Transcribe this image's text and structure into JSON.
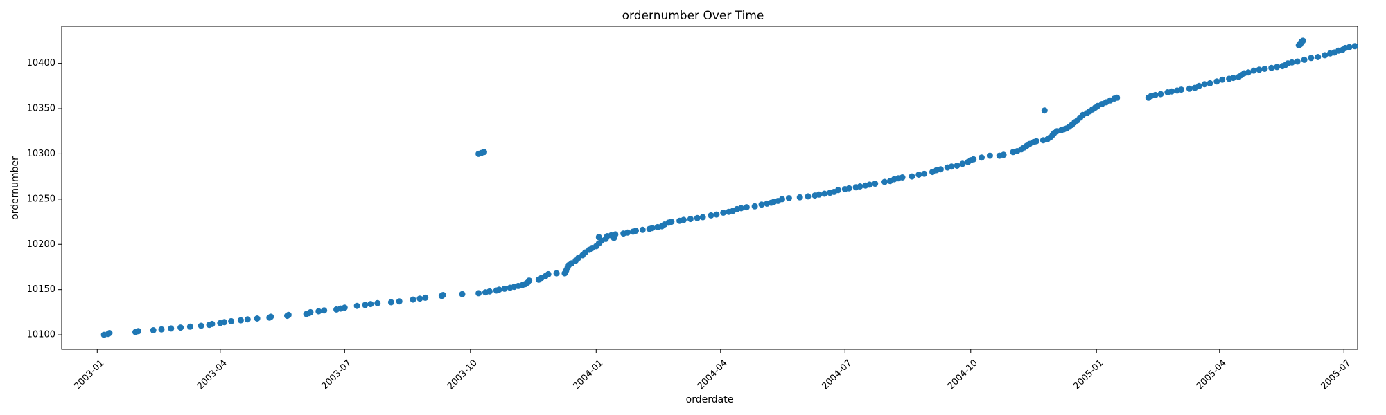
{
  "chart_data": {
    "type": "scatter",
    "title": "ordernumber Over Time",
    "xlabel": "orderdate",
    "ylabel": "ordernumber",
    "x_axis_type": "date",
    "xlim": [
      "2002-12-06",
      "2005-07-11"
    ],
    "ylim": [
      10084,
      10441
    ],
    "x_ticks": [
      "2003-01",
      "2003-04",
      "2003-07",
      "2003-10",
      "2004-01",
      "2004-04",
      "2004-07",
      "2004-10",
      "2005-01",
      "2005-04",
      "2005-07"
    ],
    "y_ticks": [
      10100,
      10150,
      10200,
      10250,
      10300,
      10350,
      10400
    ],
    "grid": false,
    "legend": "none",
    "color": "#1f77b4",
    "series": [
      {
        "points": [
          [
            "2003-01-06",
            10100
          ],
          [
            "2003-01-09",
            10101
          ],
          [
            "2003-01-10",
            10102
          ],
          [
            "2003-01-29",
            10103
          ],
          [
            "2003-01-31",
            10104
          ],
          [
            "2003-02-11",
            10105
          ],
          [
            "2003-02-17",
            10106
          ],
          [
            "2003-02-24",
            10107
          ],
          [
            "2003-03-03",
            10108
          ],
          [
            "2003-03-10",
            10109
          ],
          [
            "2003-03-18",
            10110
          ],
          [
            "2003-03-24",
            10111
          ],
          [
            "2003-03-26",
            10112
          ],
          [
            "2003-04-01",
            10113
          ],
          [
            "2003-04-04",
            10114
          ],
          [
            "2003-04-09",
            10115
          ],
          [
            "2003-04-16",
            10116
          ],
          [
            "2003-04-21",
            10117
          ],
          [
            "2003-04-28",
            10118
          ],
          [
            "2003-05-07",
            10119
          ],
          [
            "2003-05-08",
            10120
          ],
          [
            "2003-05-20",
            10121
          ],
          [
            "2003-05-21",
            10122
          ],
          [
            "2003-06-03",
            10123
          ],
          [
            "2003-06-05",
            10124
          ],
          [
            "2003-06-06",
            10125
          ],
          [
            "2003-06-12",
            10126
          ],
          [
            "2003-06-16",
            10127
          ],
          [
            "2003-06-25",
            10128
          ],
          [
            "2003-06-28",
            10129
          ],
          [
            "2003-07-01",
            10130
          ],
          [
            "2003-07-10",
            10132
          ],
          [
            "2003-07-16",
            10133
          ],
          [
            "2003-07-20",
            10134
          ],
          [
            "2003-07-25",
            10135
          ],
          [
            "2003-08-04",
            10136
          ],
          [
            "2003-08-10",
            10137
          ],
          [
            "2003-08-20",
            10139
          ],
          [
            "2003-08-25",
            10140
          ],
          [
            "2003-08-29",
            10141
          ],
          [
            "2003-09-10",
            10143
          ],
          [
            "2003-09-11",
            10144
          ],
          [
            "2003-09-25",
            10145
          ],
          [
            "2003-10-07",
            10146
          ],
          [
            "2003-10-12",
            10147
          ],
          [
            "2003-10-15",
            10148
          ],
          [
            "2003-10-20",
            10149
          ],
          [
            "2003-10-22",
            10150
          ],
          [
            "2003-10-26",
            10151
          ],
          [
            "2003-10-30",
            10152
          ],
          [
            "2003-11-02",
            10153
          ],
          [
            "2003-11-05",
            10154
          ],
          [
            "2003-11-08",
            10155
          ],
          [
            "2003-11-10",
            10156
          ],
          [
            "2003-11-11",
            10157
          ],
          [
            "2003-11-12",
            10158
          ],
          [
            "2003-11-13",
            10160
          ],
          [
            "2003-11-20",
            10161
          ],
          [
            "2003-11-22",
            10163
          ],
          [
            "2003-11-25",
            10165
          ],
          [
            "2003-11-27",
            10167
          ],
          [
            "2003-12-03",
            10168
          ],
          [
            "2003-12-09",
            10168
          ],
          [
            "2003-12-10",
            10171
          ],
          [
            "2003-12-11",
            10174
          ],
          [
            "2003-12-12",
            10177
          ],
          [
            "2003-12-14",
            10179
          ],
          [
            "2003-12-17",
            10182
          ],
          [
            "2003-12-19",
            10185
          ],
          [
            "2003-12-22",
            10188
          ],
          [
            "2003-12-24",
            10191
          ],
          [
            "2003-12-27",
            10194
          ],
          [
            "2003-12-29",
            10196
          ],
          [
            "2004-01-01",
            10198
          ],
          [
            "2004-01-03",
            10201
          ],
          [
            "2004-01-05",
            10204
          ],
          [
            "2004-01-08",
            10206
          ],
          [
            "2004-01-14",
            10207
          ],
          [
            "2003-10-07",
            10300
          ],
          [
            "2003-10-09",
            10301
          ],
          [
            "2003-10-11",
            10302
          ],
          [
            "2004-01-03",
            10208
          ],
          [
            "2004-01-09",
            10209
          ],
          [
            "2004-01-12",
            10210
          ],
          [
            "2004-01-15",
            10211
          ],
          [
            "2004-01-21",
            10212
          ],
          [
            "2004-01-24",
            10213
          ],
          [
            "2004-01-28",
            10214
          ],
          [
            "2004-01-30",
            10215
          ],
          [
            "2004-02-04",
            10216
          ],
          [
            "2004-02-09",
            10217
          ],
          [
            "2004-02-11",
            10218
          ],
          [
            "2004-02-15",
            10219
          ],
          [
            "2004-02-18",
            10220
          ],
          [
            "2004-02-20",
            10222
          ],
          [
            "2004-02-23",
            10224
          ],
          [
            "2004-02-25",
            10225
          ],
          [
            "2004-03-02",
            10226
          ],
          [
            "2004-03-05",
            10227
          ],
          [
            "2004-03-10",
            10228
          ],
          [
            "2004-03-15",
            10229
          ],
          [
            "2004-03-19",
            10230
          ],
          [
            "2004-03-25",
            10232
          ],
          [
            "2004-03-29",
            10233
          ],
          [
            "2004-04-03",
            10235
          ],
          [
            "2004-04-07",
            10236
          ],
          [
            "2004-04-10",
            10237
          ],
          [
            "2004-04-13",
            10239
          ],
          [
            "2004-04-16",
            10240
          ],
          [
            "2004-04-20",
            10241
          ],
          [
            "2004-04-26",
            10242
          ],
          [
            "2004-05-01",
            10244
          ],
          [
            "2004-05-05",
            10245
          ],
          [
            "2004-05-08",
            10246
          ],
          [
            "2004-05-10",
            10247
          ],
          [
            "2004-05-13",
            10248
          ],
          [
            "2004-05-16",
            10250
          ],
          [
            "2004-05-21",
            10251
          ],
          [
            "2004-05-29",
            10252
          ],
          [
            "2004-06-04",
            10253
          ],
          [
            "2004-06-09",
            10254
          ],
          [
            "2004-06-12",
            10255
          ],
          [
            "2004-06-16",
            10256
          ],
          [
            "2004-06-20",
            10257
          ],
          [
            "2004-06-23",
            10258
          ],
          [
            "2004-06-26",
            10260
          ],
          [
            "2004-07-01",
            10261
          ],
          [
            "2004-07-04",
            10262
          ],
          [
            "2004-07-09",
            10263
          ],
          [
            "2004-07-12",
            10264
          ],
          [
            "2004-07-16",
            10265
          ],
          [
            "2004-07-19",
            10266
          ],
          [
            "2004-07-23",
            10267
          ],
          [
            "2004-07-30",
            10269
          ],
          [
            "2004-08-03",
            10270
          ],
          [
            "2004-08-06",
            10272
          ],
          [
            "2004-08-09",
            10273
          ],
          [
            "2004-08-12",
            10274
          ],
          [
            "2004-08-19",
            10275
          ],
          [
            "2004-08-24",
            10277
          ],
          [
            "2004-08-28",
            10278
          ],
          [
            "2004-09-03",
            10280
          ],
          [
            "2004-09-06",
            10282
          ],
          [
            "2004-09-09",
            10283
          ],
          [
            "2004-09-14",
            10285
          ],
          [
            "2004-09-17",
            10286
          ],
          [
            "2004-09-21",
            10287
          ],
          [
            "2004-09-25",
            10289
          ],
          [
            "2004-09-29",
            10291
          ],
          [
            "2004-10-01",
            10293
          ],
          [
            "2004-10-03",
            10294
          ],
          [
            "2004-10-09",
            10296
          ],
          [
            "2004-10-15",
            10298
          ],
          [
            "2004-10-22",
            10298
          ],
          [
            "2004-10-25",
            10299
          ],
          [
            "2004-11-01",
            10302
          ],
          [
            "2004-11-04",
            10303
          ],
          [
            "2004-11-07",
            10305
          ],
          [
            "2004-11-09",
            10307
          ],
          [
            "2004-11-11",
            10309
          ],
          [
            "2004-11-13",
            10311
          ],
          [
            "2004-11-16",
            10313
          ],
          [
            "2004-11-18",
            10314
          ],
          [
            "2004-11-23",
            10315
          ],
          [
            "2004-11-26",
            10316
          ],
          [
            "2004-11-28",
            10318
          ],
          [
            "2004-11-30",
            10321
          ],
          [
            "2004-12-01",
            10323
          ],
          [
            "2004-12-03",
            10325
          ],
          [
            "2004-12-06",
            10326
          ],
          [
            "2004-12-08",
            10327
          ],
          [
            "2004-12-10",
            10328
          ],
          [
            "2004-12-12",
            10330
          ],
          [
            "2004-12-14",
            10332
          ],
          [
            "2004-12-16",
            10335
          ],
          [
            "2004-12-18",
            10337
          ],
          [
            "2004-12-20",
            10340
          ],
          [
            "2004-12-22",
            10343
          ],
          [
            "2004-12-25",
            10345
          ],
          [
            "2004-12-27",
            10347
          ],
          [
            "2004-12-29",
            10349
          ],
          [
            "2004-12-31",
            10351
          ],
          [
            "2005-01-02",
            10353
          ],
          [
            "2005-01-05",
            10355
          ],
          [
            "2005-01-08",
            10357
          ],
          [
            "2005-01-11",
            10359
          ],
          [
            "2005-01-14",
            10361
          ],
          [
            "2005-01-16",
            10362
          ],
          [
            "2004-11-24",
            10348
          ],
          [
            "2005-02-08",
            10362
          ],
          [
            "2005-02-10",
            10364
          ],
          [
            "2005-02-13",
            10365
          ],
          [
            "2005-02-17",
            10366
          ],
          [
            "2005-02-22",
            10368
          ],
          [
            "2005-02-25",
            10369
          ],
          [
            "2005-03-01",
            10370
          ],
          [
            "2005-03-04",
            10371
          ],
          [
            "2005-03-10",
            10372
          ],
          [
            "2005-03-14",
            10373
          ],
          [
            "2005-03-17",
            10375
          ],
          [
            "2005-03-21",
            10377
          ],
          [
            "2005-03-25",
            10378
          ],
          [
            "2005-03-30",
            10380
          ],
          [
            "2005-04-03",
            10382
          ],
          [
            "2005-04-08",
            10383
          ],
          [
            "2005-04-11",
            10384
          ],
          [
            "2005-04-15",
            10385
          ],
          [
            "2005-04-17",
            10387
          ],
          [
            "2005-04-19",
            10389
          ],
          [
            "2005-04-22",
            10390
          ],
          [
            "2005-04-26",
            10392
          ],
          [
            "2005-04-30",
            10393
          ],
          [
            "2005-05-04",
            10394
          ],
          [
            "2005-05-09",
            10395
          ],
          [
            "2005-05-13",
            10396
          ],
          [
            "2005-05-17",
            10397
          ],
          [
            "2005-05-19",
            10398
          ],
          [
            "2005-05-21",
            10400
          ],
          [
            "2005-05-24",
            10401
          ],
          [
            "2005-05-28",
            10402
          ],
          [
            "2005-06-02",
            10404
          ],
          [
            "2005-06-07",
            10406
          ],
          [
            "2005-06-12",
            10407
          ],
          [
            "2005-06-17",
            10409
          ],
          [
            "2005-06-21",
            10411
          ],
          [
            "2005-06-24",
            10412
          ],
          [
            "2005-06-27",
            10414
          ],
          [
            "2005-06-30",
            10415
          ],
          [
            "2005-07-02",
            10417
          ],
          [
            "2005-07-05",
            10418
          ],
          [
            "2005-07-09",
            10419
          ],
          [
            "2005-05-29",
            10420
          ],
          [
            "2005-05-30",
            10421
          ],
          [
            "2005-05-30",
            10422
          ],
          [
            "2005-05-31",
            10423
          ],
          [
            "2005-05-31",
            10424
          ],
          [
            "2005-06-01",
            10425
          ]
        ]
      }
    ]
  }
}
